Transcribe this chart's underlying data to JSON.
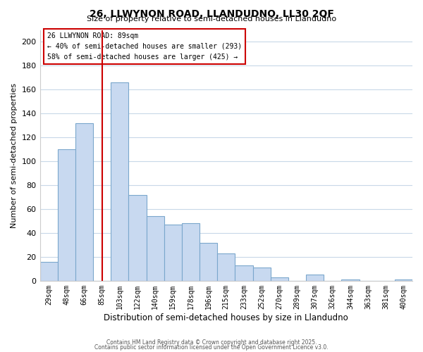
{
  "title": "26, LLWYNON ROAD, LLANDUDNO, LL30 2QF",
  "subtitle": "Size of property relative to semi-detached houses in Llandudno",
  "xlabel": "Distribution of semi-detached houses by size in Llandudno",
  "ylabel": "Number of semi-detached properties",
  "categories": [
    "29sqm",
    "48sqm",
    "66sqm",
    "85sqm",
    "103sqm",
    "122sqm",
    "140sqm",
    "159sqm",
    "178sqm",
    "196sqm",
    "215sqm",
    "233sqm",
    "252sqm",
    "270sqm",
    "289sqm",
    "307sqm",
    "326sqm",
    "344sqm",
    "363sqm",
    "381sqm",
    "400sqm"
  ],
  "values": [
    16,
    110,
    132,
    0,
    166,
    72,
    54,
    47,
    48,
    32,
    23,
    13,
    11,
    3,
    0,
    5,
    0,
    1,
    0,
    0,
    1
  ],
  "bar_color": "#c8d9f0",
  "bar_edge_color": "#7ba7cc",
  "vline_x_index": 3,
  "vline_color": "#cc0000",
  "ylim": [
    0,
    210
  ],
  "yticks": [
    0,
    20,
    40,
    60,
    80,
    100,
    120,
    140,
    160,
    180,
    200
  ],
  "annotation_title": "26 LLWYNON ROAD: 89sqm",
  "annotation_line1": "← 40% of semi-detached houses are smaller (293)",
  "annotation_line2": "58% of semi-detached houses are larger (425) →",
  "annotation_box_color": "#ffffff",
  "annotation_box_edge": "#cc0000",
  "footer1": "Contains HM Land Registry data © Crown copyright and database right 2025.",
  "footer2": "Contains public sector information licensed under the Open Government Licence v3.0.",
  "background_color": "#ffffff",
  "grid_color": "#c8d8e8"
}
